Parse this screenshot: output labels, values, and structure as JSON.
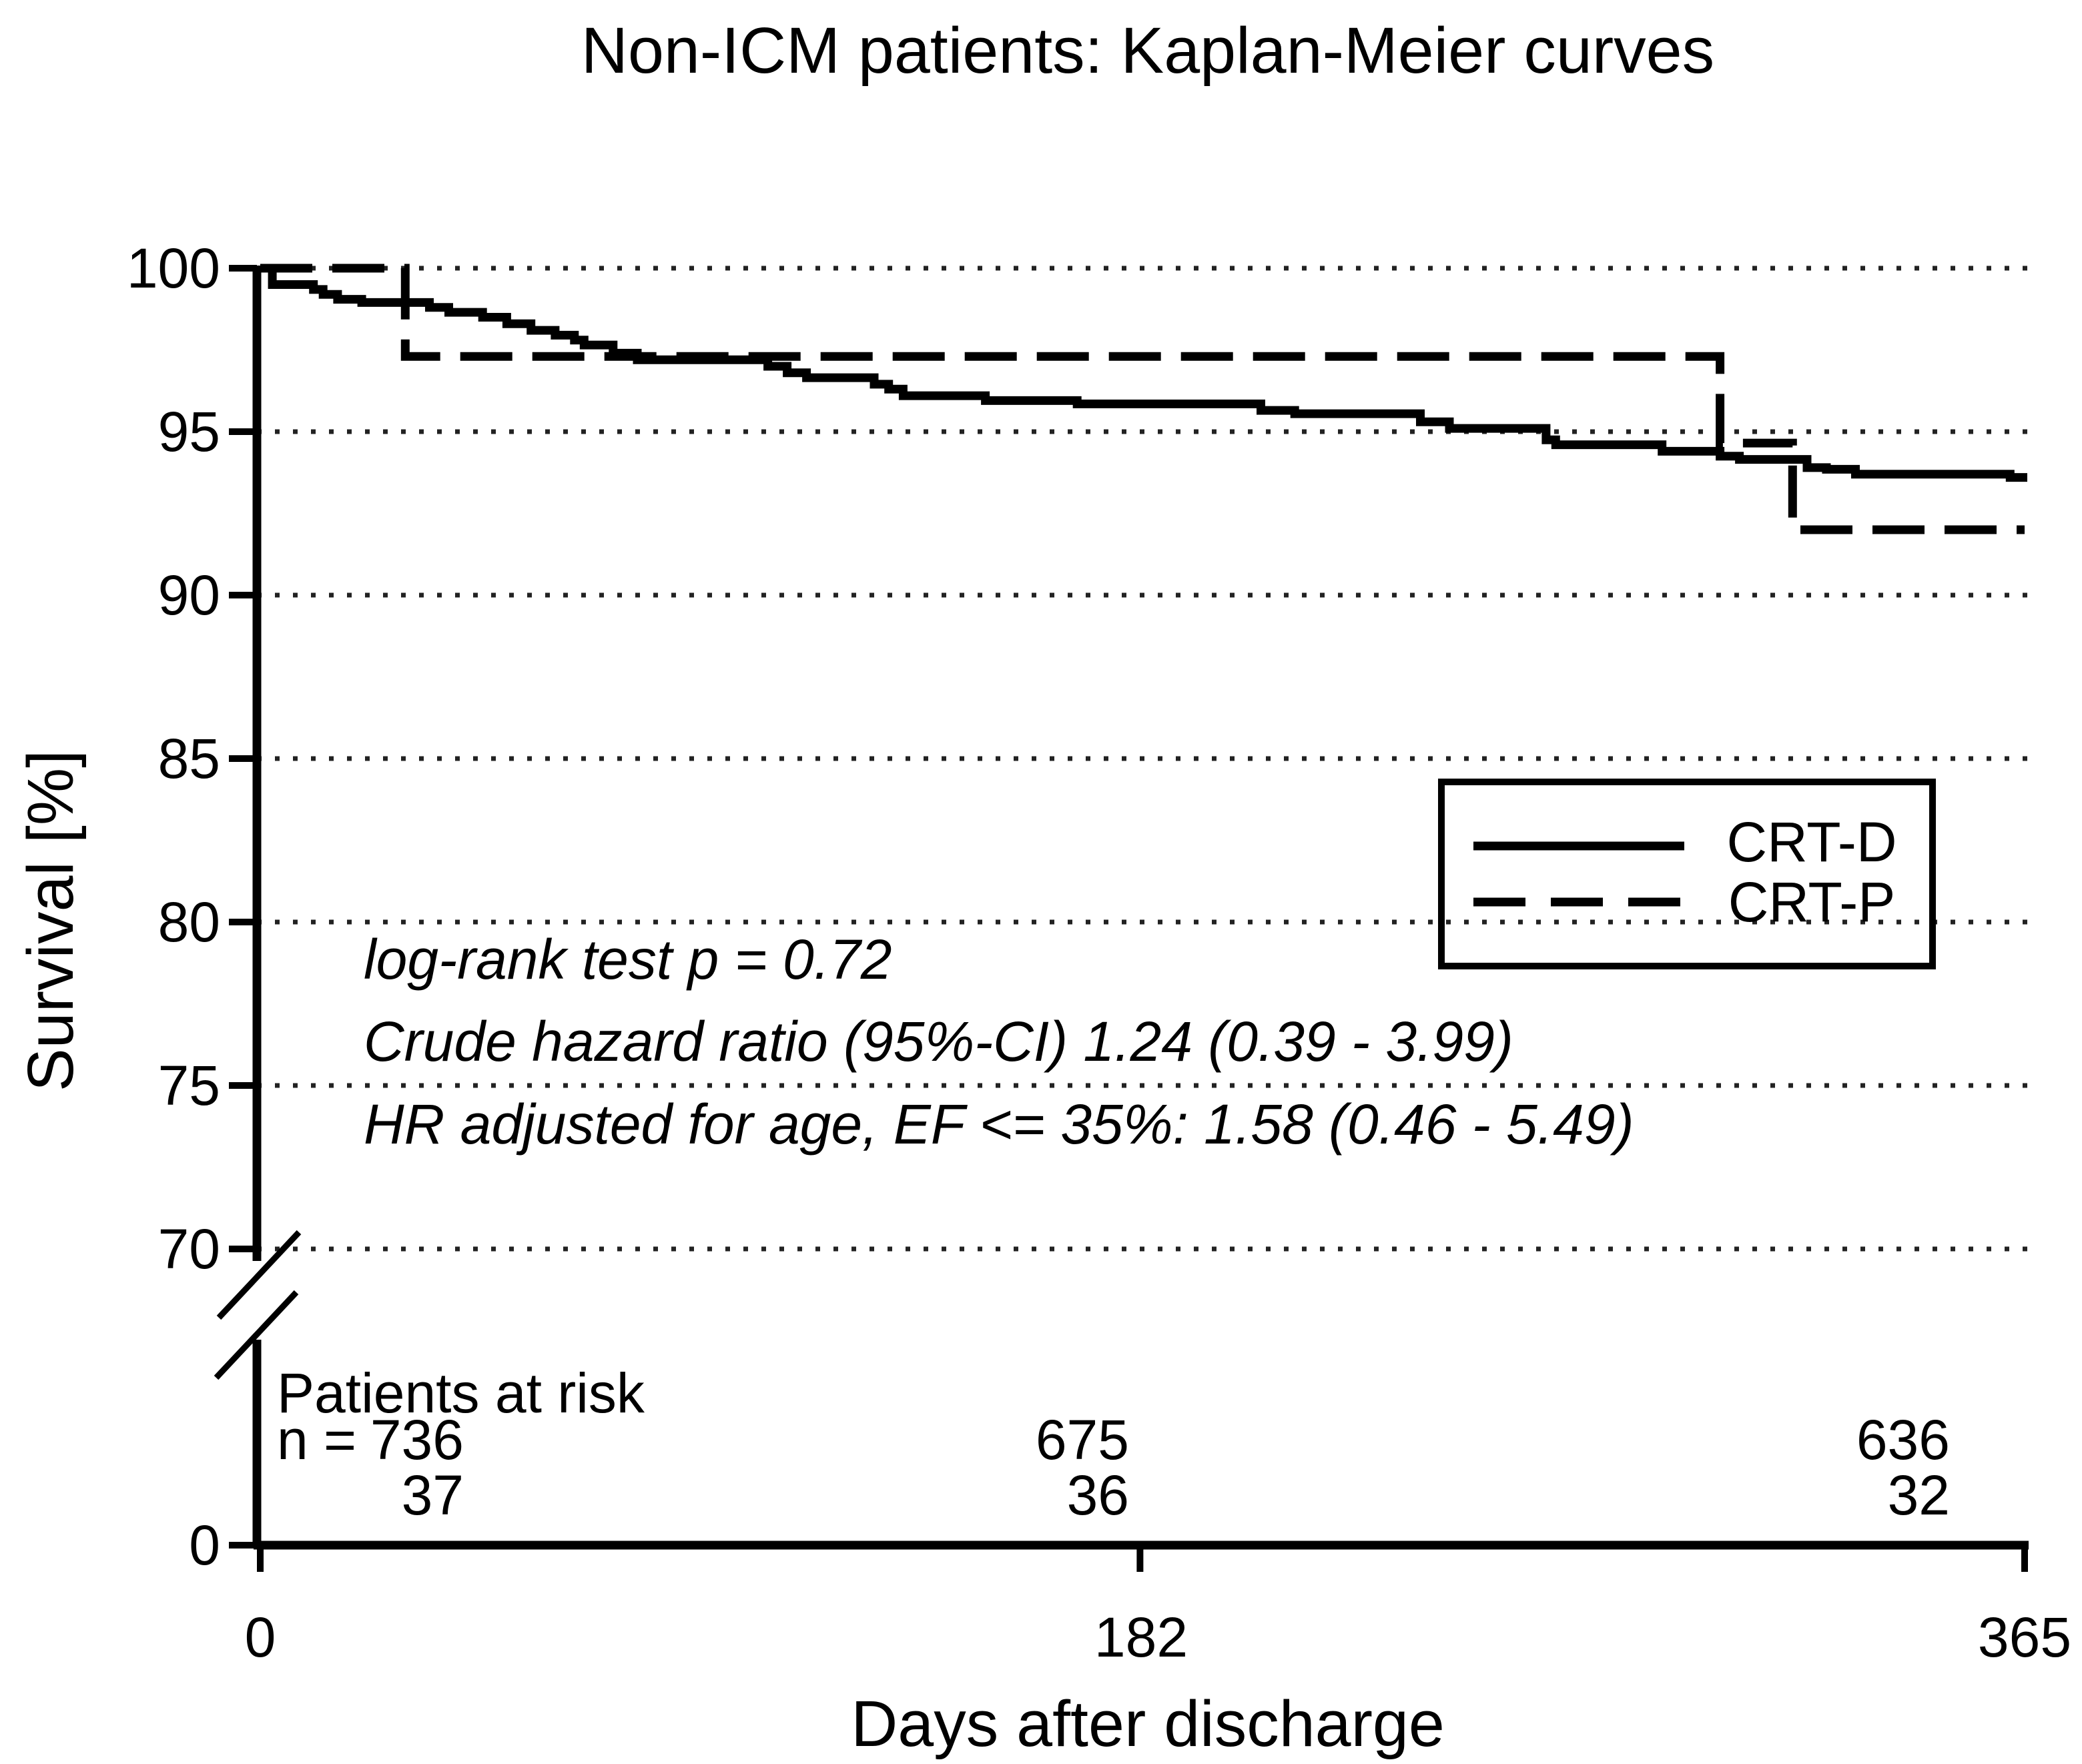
{
  "title": "Non-ICM patients: Kaplan-Meier curves",
  "y_axis": {
    "label": "Survival [%]",
    "ticks": [
      "100",
      "95",
      "90",
      "85",
      "80",
      "75",
      "70"
    ],
    "zero_label": "0",
    "has_axis_break": true
  },
  "x_axis": {
    "label": "Days after discharge",
    "ticks": [
      "0",
      "182",
      "365"
    ]
  },
  "annotations": [
    "log-rank test p = 0.72",
    "Crude hazard ratio (95%-CI) 1.24 (0.39 - 3.99)",
    "HR adjusted for age, EF <= 35%: 1.58 (0.46 - 5.49)"
  ],
  "legend": {
    "entries": [
      {
        "label": "CRT-D",
        "style": "solid"
      },
      {
        "label": "CRT-P",
        "style": "dashed"
      }
    ]
  },
  "risk_table": {
    "header": "Patients at risk",
    "prefix": "n =",
    "times": [
      "0",
      "182",
      "365"
    ],
    "rows": [
      {
        "series": "CRT-D",
        "values": [
          "736",
          "675",
          "636"
        ]
      },
      {
        "series": "CRT-P",
        "values": [
          "37",
          "36",
          "32"
        ]
      }
    ]
  },
  "colors": {
    "foreground": "#000000",
    "background": "#ffffff",
    "grid": "#222222"
  },
  "chart_data": {
    "type": "line",
    "subtype": "kaplan-meier-step-curves",
    "title": "Non-ICM patients: Kaplan-Meier curves",
    "xlabel": "Days after discharge",
    "ylabel": "Survival [%]",
    "xlim": [
      0,
      365
    ],
    "ylim_displayed": [
      70,
      100
    ],
    "y_axis_break_to": 0,
    "x_ticks": [
      0,
      182,
      365
    ],
    "y_grid_values": [
      100,
      95,
      90,
      85,
      80,
      75,
      70
    ],
    "grid": "dotted horizontal lines",
    "legend_position": "middle right",
    "series": [
      {
        "name": "CRT-D",
        "line": "solid",
        "steps": [
          [
            0,
            100
          ],
          [
            2.5,
            99.5
          ],
          [
            11,
            99.35
          ],
          [
            13,
            99.2
          ],
          [
            16,
            99.05
          ],
          [
            21,
            98.95
          ],
          [
            35,
            98.8
          ],
          [
            39,
            98.65
          ],
          [
            46,
            98.5
          ],
          [
            51,
            98.3
          ],
          [
            56,
            98.1
          ],
          [
            61,
            97.95
          ],
          [
            65,
            97.8
          ],
          [
            67,
            97.65
          ],
          [
            73,
            97.4
          ],
          [
            78,
            97.2
          ],
          [
            105,
            97.0
          ],
          [
            109,
            96.8
          ],
          [
            113,
            96.65
          ],
          [
            127,
            96.45
          ],
          [
            130,
            96.3
          ],
          [
            133,
            96.1
          ],
          [
            150,
            95.95
          ],
          [
            169,
            95.85
          ],
          [
            207,
            95.65
          ],
          [
            214,
            95.55
          ],
          [
            240,
            95.3
          ],
          [
            246,
            95.1
          ],
          [
            266,
            94.75
          ],
          [
            268,
            94.6
          ],
          [
            290,
            94.4
          ],
          [
            302,
            94.25
          ],
          [
            306,
            94.15
          ],
          [
            320,
            93.9
          ],
          [
            324,
            93.85
          ],
          [
            330,
            93.7
          ],
          [
            362,
            93.6
          ]
        ]
      },
      {
        "name": "CRT-P",
        "line": "dashed",
        "steps": [
          [
            0,
            100
          ],
          [
            30,
            97.3
          ],
          [
            302,
            94.65
          ],
          [
            317,
            92.0
          ]
        ]
      }
    ],
    "annotations": [
      "log-rank test p = 0.72",
      "Crude hazard ratio (95%-CI) 1.24 (0.39 - 3.99)",
      "HR adjusted for age, EF <= 35%: 1.58 (0.46 - 5.49)"
    ],
    "patients_at_risk": {
      "times": [
        0,
        182,
        365
      ],
      "CRT-D": [
        736,
        675,
        636
      ],
      "CRT-P": [
        37,
        36,
        32
      ]
    }
  }
}
